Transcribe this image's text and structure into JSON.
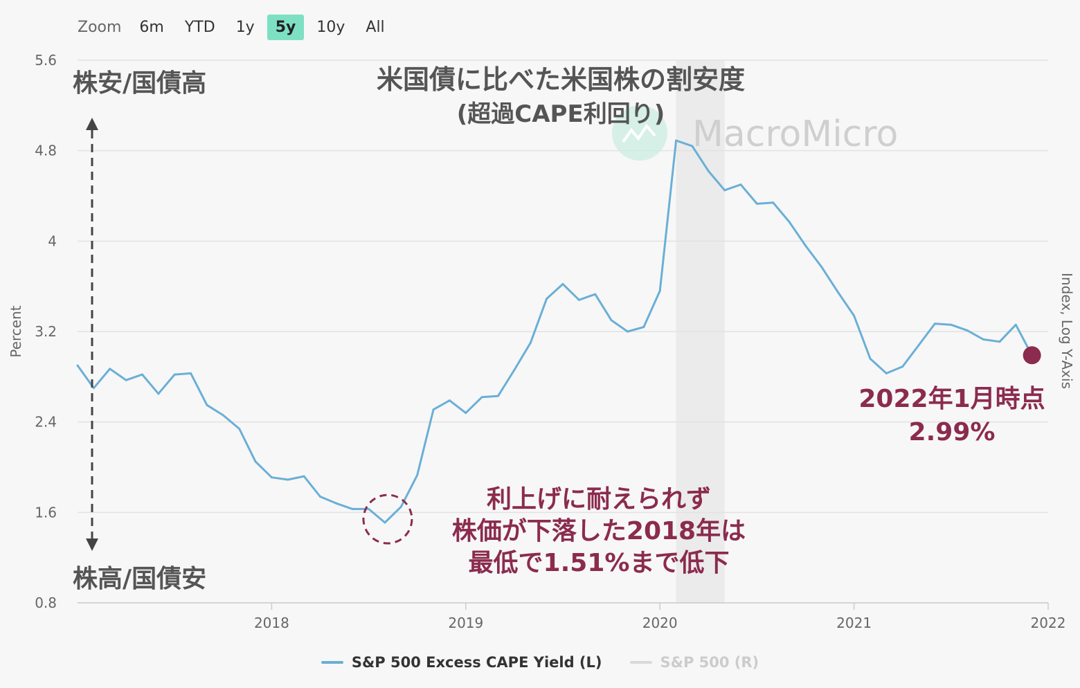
{
  "zoom": {
    "label": "Zoom",
    "buttons": [
      "6m",
      "YTD",
      "1y",
      "5y",
      "10y",
      "All"
    ],
    "active": "5y"
  },
  "chart_data": {
    "type": "line",
    "title": "米国債に比べた米国株の割安度",
    "subtitle": "(超過CAPE利回り)",
    "watermark": "MacroMicro",
    "ylabel": "Percent",
    "ylabel_right": "Index, Log Y-Axis",
    "ylim": [
      0.8,
      5.6
    ],
    "yticks": [
      "5.6",
      "4.8",
      "4",
      "3.2",
      "2.4",
      "1.6",
      "0.8"
    ],
    "xticks": [
      "2018",
      "2019",
      "2020",
      "2021",
      "2022"
    ],
    "x_start": "2017-01",
    "x_end": "2022-01",
    "upper_annotation": "株安/国債高",
    "lower_annotation": "株高/国債安",
    "shaded_region": {
      "from": "2020-02",
      "to": "2020-05"
    },
    "series": [
      {
        "name": "S&P 500 Excess CAPE Yield (L)",
        "color": "#6aafd6",
        "points": [
          [
            "2017-01",
            2.9
          ],
          [
            "2017-02",
            2.7
          ],
          [
            "2017-03",
            2.87
          ],
          [
            "2017-04",
            2.77
          ],
          [
            "2017-05",
            2.82
          ],
          [
            "2017-06",
            2.65
          ],
          [
            "2017-07",
            2.82
          ],
          [
            "2017-08",
            2.83
          ],
          [
            "2017-09",
            2.55
          ],
          [
            "2017-10",
            2.46
          ],
          [
            "2017-11",
            2.34
          ],
          [
            "2017-12",
            2.05
          ],
          [
            "2018-01",
            1.91
          ],
          [
            "2018-02",
            1.89
          ],
          [
            "2018-03",
            1.92
          ],
          [
            "2018-04",
            1.74
          ],
          [
            "2018-05",
            1.68
          ],
          [
            "2018-06",
            1.63
          ],
          [
            "2018-07",
            1.63
          ],
          [
            "2018-08",
            1.51
          ],
          [
            "2018-09",
            1.65
          ],
          [
            "2018-10",
            1.93
          ],
          [
            "2018-11",
            2.51
          ],
          [
            "2018-12",
            2.59
          ],
          [
            "2019-01",
            2.48
          ],
          [
            "2019-02",
            2.62
          ],
          [
            "2019-03",
            2.63
          ],
          [
            "2019-04",
            2.86
          ],
          [
            "2019-05",
            3.1
          ],
          [
            "2019-06",
            3.49
          ],
          [
            "2019-07",
            3.62
          ],
          [
            "2019-08",
            3.48
          ],
          [
            "2019-09",
            3.53
          ],
          [
            "2019-10",
            3.3
          ],
          [
            "2019-11",
            3.2
          ],
          [
            "2019-12",
            3.24
          ],
          [
            "2020-01",
            3.56
          ],
          [
            "2020-02",
            4.89
          ],
          [
            "2020-03",
            4.84
          ],
          [
            "2020-04",
            4.62
          ],
          [
            "2020-05",
            4.45
          ],
          [
            "2020-06",
            4.5
          ],
          [
            "2020-07",
            4.33
          ],
          [
            "2020-08",
            4.34
          ],
          [
            "2020-09",
            4.17
          ],
          [
            "2020-10",
            3.96
          ],
          [
            "2020-11",
            3.77
          ],
          [
            "2020-12",
            3.55
          ],
          [
            "2021-01",
            3.34
          ],
          [
            "2021-02",
            2.96
          ],
          [
            "2021-03",
            2.83
          ],
          [
            "2021-04",
            2.89
          ],
          [
            "2021-05",
            3.08
          ],
          [
            "2021-06",
            3.27
          ],
          [
            "2021-07",
            3.26
          ],
          [
            "2021-08",
            3.21
          ],
          [
            "2021-09",
            3.13
          ],
          [
            "2021-10",
            3.11
          ],
          [
            "2021-11",
            3.26
          ],
          [
            "2021-12",
            2.99
          ]
        ]
      },
      {
        "name": "S&P 500 (R)",
        "color": "#d9d9d9",
        "points": []
      }
    ],
    "annotations": {
      "latest_label_line1": "2022年1月時点",
      "latest_label_line2": "2.99%",
      "latest_value": 2.99,
      "low_label_lines": [
        "利上げに耐えられず",
        "株価が下落した2018年は",
        "最低で1.51%まで低下"
      ],
      "low_value": 1.51,
      "highlight_color": "#8b2b4e"
    }
  }
}
